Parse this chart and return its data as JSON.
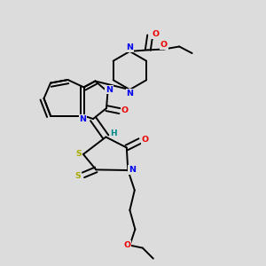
{
  "background_color": "#dcdcdc",
  "atom_colors": {
    "C": "#000000",
    "N": "#0000ee",
    "O": "#ee0000",
    "S": "#aaaa00",
    "H": "#008888"
  },
  "line_color": "#000000",
  "line_width": 1.4
}
